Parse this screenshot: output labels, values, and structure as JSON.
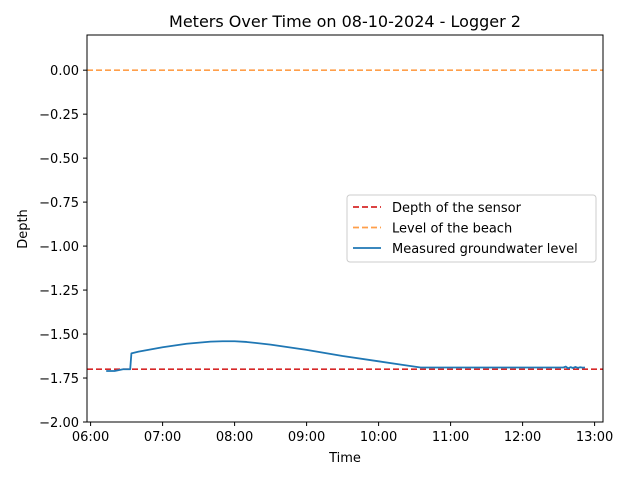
{
  "chart_data": {
    "type": "line",
    "title": "Meters Over Time on 08-10-2024 - Logger 2",
    "xlabel": "Time",
    "ylabel": "Depth",
    "xlim": [
      "05:57",
      "13:07"
    ],
    "ylim": [
      -2.0,
      0.2
    ],
    "x_ticks": [
      "06:00",
      "07:00",
      "08:00",
      "09:00",
      "10:00",
      "11:00",
      "12:00",
      "13:00"
    ],
    "y_ticks": [
      "0.00",
      "−0.25",
      "−0.50",
      "−0.75",
      "−1.00",
      "−1.25",
      "−1.50",
      "−1.75",
      "−2.00"
    ],
    "y_tick_values": [
      0.0,
      -0.25,
      -0.5,
      -0.75,
      -1.0,
      -1.25,
      -1.5,
      -1.75,
      -2.0
    ],
    "grid": false,
    "legend_position": "center-right",
    "series": [
      {
        "name": "Depth of the sensor",
        "kind": "hline",
        "value": -1.7,
        "style": "dashed",
        "color": "#d62728"
      },
      {
        "name": "Level of the beach",
        "kind": "hline",
        "value": 0.0,
        "style": "dashed",
        "color": "#ff9f4a"
      },
      {
        "name": "Measured groundwater level",
        "kind": "line",
        "style": "solid",
        "color": "#1f77b4",
        "x": [
          "06:13",
          "06:20",
          "06:27",
          "06:33",
          "06:34",
          "06:40",
          "07:00",
          "07:20",
          "07:40",
          "07:50",
          "08:00",
          "08:10",
          "08:30",
          "09:00",
          "09:30",
          "10:00",
          "10:20",
          "10:35",
          "10:40",
          "11:00",
          "11:30",
          "12:00",
          "12:20",
          "12:34",
          "12:36",
          "12:38",
          "12:40",
          "12:42",
          "12:44",
          "12:46",
          "12:48",
          "12:50",
          "12:52"
        ],
        "y": [
          -1.71,
          -1.71,
          -1.7,
          -1.7,
          -1.61,
          -1.6,
          -1.575,
          -1.555,
          -1.543,
          -1.541,
          -1.541,
          -1.545,
          -1.56,
          -1.59,
          -1.625,
          -1.655,
          -1.675,
          -1.69,
          -1.69,
          -1.69,
          -1.69,
          -1.69,
          -1.69,
          -1.69,
          -1.685,
          -1.695,
          -1.688,
          -1.693,
          -1.687,
          -1.692,
          -1.689,
          -1.691,
          -1.69
        ]
      }
    ]
  }
}
